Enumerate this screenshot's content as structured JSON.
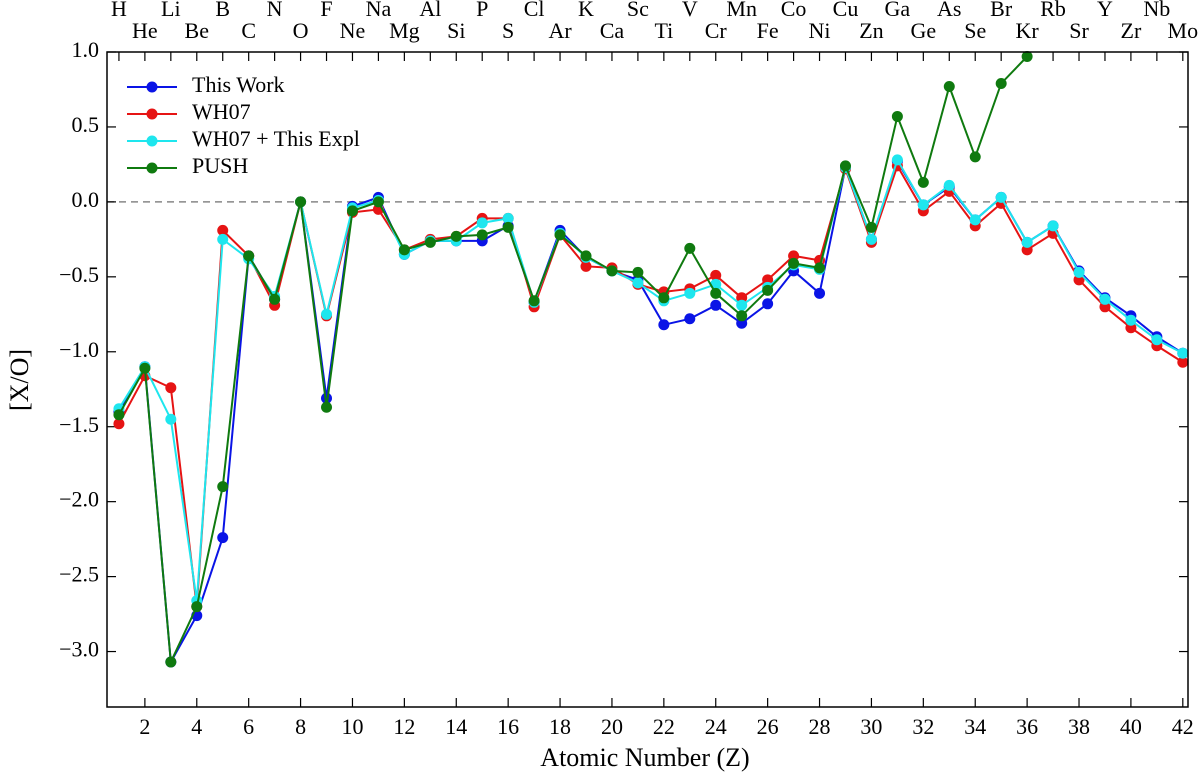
{
  "chart_data": {
    "type": "line",
    "x_label": "Atomic Number (Z)",
    "y_label": "[X/O]",
    "x": [
      1,
      2,
      3,
      4,
      5,
      6,
      7,
      8,
      9,
      10,
      11,
      12,
      13,
      14,
      15,
      16,
      17,
      18,
      19,
      20,
      21,
      22,
      23,
      24,
      25,
      26,
      27,
      28,
      29,
      30,
      31,
      32,
      33,
      34,
      35,
      36,
      37,
      38,
      39,
      40,
      41,
      42
    ],
    "series": [
      {
        "name": "This Work",
        "color": "#0a14e6",
        "values": [
          -1.4,
          -1.1,
          -3.07,
          -2.76,
          -2.24,
          -0.36,
          -0.65,
          0.0,
          -1.31,
          -0.03,
          0.03,
          -0.35,
          -0.26,
          -0.26,
          -0.26,
          -0.16,
          -0.67,
          -0.19,
          -0.37,
          -0.46,
          -0.52,
          -0.82,
          -0.78,
          -0.69,
          -0.81,
          -0.68,
          -0.46,
          -0.61,
          0.23,
          -0.25,
          0.27,
          -0.02,
          0.1,
          -0.12,
          0.03,
          -0.27,
          -0.16,
          -0.46,
          -0.64,
          -0.76,
          -0.9,
          -1.01
        ]
      },
      {
        "name": "WH07",
        "color": "#e61414",
        "values": [
          -1.48,
          -1.16,
          -1.24,
          -2.7,
          -0.19,
          -0.36,
          -0.69,
          0.0,
          -0.76,
          -0.07,
          -0.05,
          -0.32,
          -0.25,
          -0.23,
          -0.11,
          -0.11,
          -0.7,
          -0.22,
          -0.43,
          -0.44,
          -0.55,
          -0.6,
          -0.58,
          -0.49,
          -0.64,
          -0.52,
          -0.36,
          -0.39,
          0.22,
          -0.27,
          0.24,
          -0.06,
          0.07,
          -0.16,
          -0.01,
          -0.32,
          -0.21,
          -0.52,
          -0.7,
          -0.84,
          -0.96,
          -1.07
        ]
      },
      {
        "name": "WH07 + This Expl",
        "color": "#1ee6ee",
        "values": [
          -1.38,
          -1.1,
          -1.45,
          -2.66,
          -0.25,
          -0.38,
          -0.63,
          0.0,
          -0.75,
          -0.04,
          0.01,
          -0.35,
          -0.26,
          -0.26,
          -0.14,
          -0.11,
          -0.67,
          -0.21,
          -0.37,
          -0.46,
          -0.54,
          -0.66,
          -0.61,
          -0.55,
          -0.69,
          -0.57,
          -0.42,
          -0.45,
          0.23,
          -0.25,
          0.28,
          -0.02,
          0.11,
          -0.12,
          0.03,
          -0.27,
          -0.16,
          -0.47,
          -0.65,
          -0.79,
          -0.92,
          -1.01
        ]
      },
      {
        "name": "PUSH",
        "color": "#0f7a0f",
        "values": [
          -1.42,
          -1.11,
          -3.07,
          -2.7,
          -1.9,
          -0.36,
          -0.65,
          0.0,
          -1.37,
          -0.06,
          0.0,
          -0.32,
          -0.27,
          -0.23,
          -0.22,
          -0.17,
          -0.66,
          -0.22,
          -0.36,
          -0.46,
          -0.47,
          -0.64,
          -0.31,
          -0.61,
          -0.76,
          -0.59,
          -0.41,
          -0.44,
          0.24,
          -0.17,
          0.57,
          0.13,
          0.77,
          0.3,
          0.79,
          0.97,
          null,
          null,
          null,
          null,
          null,
          null
        ]
      }
    ],
    "xlim": [
      0.54,
      42.2
    ],
    "ylim": [
      -3.37,
      1.0
    ],
    "xticks": [
      2,
      4,
      6,
      8,
      10,
      12,
      14,
      16,
      18,
      20,
      22,
      24,
      26,
      28,
      30,
      32,
      34,
      36,
      38,
      40,
      42
    ],
    "yticks": [
      {
        "value": 1.0,
        "label": "1.0"
      },
      {
        "value": 0.5,
        "label": "0.5"
      },
      {
        "value": 0.0,
        "label": "0.0"
      },
      {
        "value": -0.5,
        "label": "−0.5"
      },
      {
        "value": -1.0,
        "label": "−1.0"
      },
      {
        "value": -1.5,
        "label": "−1.5"
      },
      {
        "value": -2.0,
        "label": "−2.0"
      },
      {
        "value": -2.5,
        "label": "−2.5"
      },
      {
        "value": -3.0,
        "label": "−3.0"
      }
    ],
    "x2ticks": [
      {
        "value": 1,
        "label": "H"
      },
      {
        "value": 2,
        "label": "He"
      },
      {
        "value": 3,
        "label": "Li"
      },
      {
        "value": 4,
        "label": "Be"
      },
      {
        "value": 5,
        "label": "B"
      },
      {
        "value": 6,
        "label": "C"
      },
      {
        "value": 7,
        "label": "N"
      },
      {
        "value": 8,
        "label": "O"
      },
      {
        "value": 9,
        "label": "F"
      },
      {
        "value": 10,
        "label": "Ne"
      },
      {
        "value": 11,
        "label": "Na"
      },
      {
        "value": 12,
        "label": "Mg"
      },
      {
        "value": 13,
        "label": "Al"
      },
      {
        "value": 14,
        "label": "Si"
      },
      {
        "value": 15,
        "label": "P"
      },
      {
        "value": 16,
        "label": "S"
      },
      {
        "value": 17,
        "label": "Cl"
      },
      {
        "value": 18,
        "label": "Ar"
      },
      {
        "value": 19,
        "label": "K"
      },
      {
        "value": 20,
        "label": "Ca"
      },
      {
        "value": 21,
        "label": "Sc"
      },
      {
        "value": 22,
        "label": "Ti"
      },
      {
        "value": 23,
        "label": "V"
      },
      {
        "value": 24,
        "label": "Cr"
      },
      {
        "value": 25,
        "label": "Mn"
      },
      {
        "value": 26,
        "label": "Fe"
      },
      {
        "value": 27,
        "label": "Co"
      },
      {
        "value": 28,
        "label": "Ni"
      },
      {
        "value": 29,
        "label": "Cu"
      },
      {
        "value": 30,
        "label": "Zn"
      },
      {
        "value": 31,
        "label": "Ga"
      },
      {
        "value": 32,
        "label": "Ge"
      },
      {
        "value": 33,
        "label": "As"
      },
      {
        "value": 34,
        "label": "Se"
      },
      {
        "value": 35,
        "label": "Br"
      },
      {
        "value": 36,
        "label": "Kr"
      },
      {
        "value": 37,
        "label": "Rb"
      },
      {
        "value": 38,
        "label": "Sr"
      },
      {
        "value": 39,
        "label": "Y"
      },
      {
        "value": 40,
        "label": "Zr"
      },
      {
        "value": 41,
        "label": "Nb"
      },
      {
        "value": 42,
        "label": "Mo"
      }
    ],
    "reference_line": 0.0,
    "legend": "upper left"
  }
}
